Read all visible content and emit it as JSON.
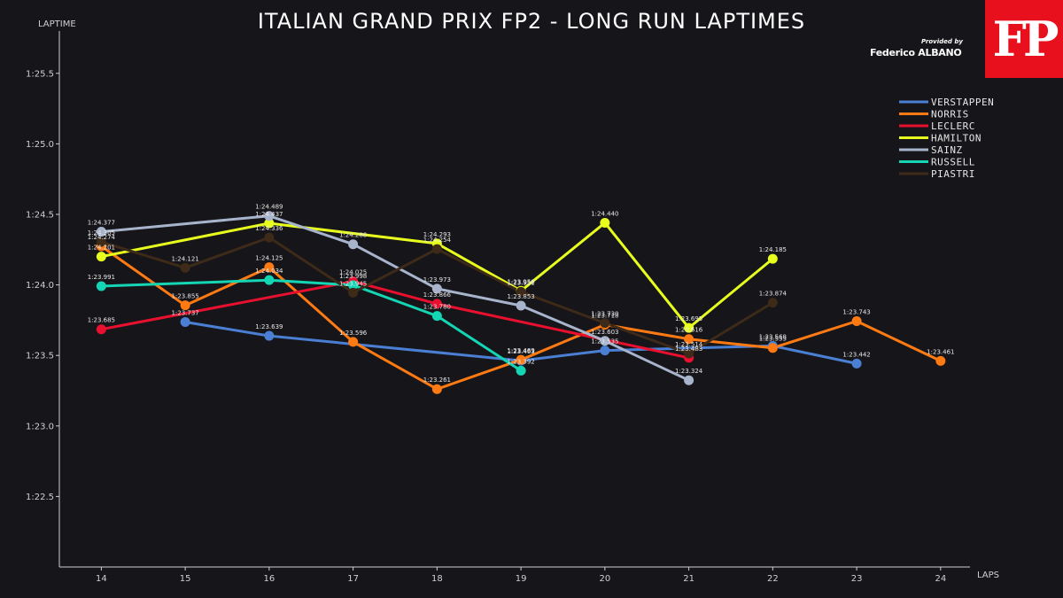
{
  "title": "ITALIAN GRAND PRIX FP2 - LONG RUN LAPTIMES",
  "branding": {
    "logo_text": "FP",
    "credit_label": "Provided by",
    "credit_name": "Federico ALBANO"
  },
  "chart_data": {
    "type": "line",
    "title": "ITALIAN GRAND PRIX FP2 - LONG RUN LAPTIMES",
    "xlabel": "LAPS",
    "ylabel": "LAPTIME",
    "x_ticks": [
      14,
      15,
      16,
      17,
      18,
      19,
      20,
      21,
      22,
      23,
      24
    ],
    "y_ticks": [
      {
        "value": 82.5,
        "label": "1:22.5"
      },
      {
        "value": 83.0,
        "label": "1:23.0"
      },
      {
        "value": 83.5,
        "label": "1:23.5"
      },
      {
        "value": 84.0,
        "label": "1:24.0"
      },
      {
        "value": 84.5,
        "label": "1:24.5"
      },
      {
        "value": 85.0,
        "label": "1:25.0"
      },
      {
        "value": 85.5,
        "label": "1:25.5"
      }
    ],
    "xlim": [
      13.5,
      24.35
    ],
    "ylim": [
      82.0,
      85.8
    ],
    "grid": false,
    "legend_position": "top-right",
    "series": [
      {
        "name": "VERSTAPPEN",
        "color": "#4a7fd4",
        "points": [
          {
            "x": 15,
            "y": 83.737,
            "label": "1:23.737"
          },
          {
            "x": 16,
            "y": 83.639,
            "label": "1:23.639"
          },
          {
            "x": 19,
            "y": 83.463,
            "label": "1:23.463"
          },
          {
            "x": 20,
            "y": 83.535,
            "label": "1:23.535"
          },
          {
            "x": 22,
            "y": 83.568,
            "label": "1:23.568"
          },
          {
            "x": 23,
            "y": 83.442,
            "label": "1:23.442"
          }
        ]
      },
      {
        "name": "NORRIS",
        "color": "#ff7a12",
        "points": [
          {
            "x": 14,
            "y": 84.274,
            "label": "1:24.274"
          },
          {
            "x": 15,
            "y": 83.855,
            "label": "1:23.855"
          },
          {
            "x": 16,
            "y": 84.125,
            "label": "1:24.125"
          },
          {
            "x": 17,
            "y": 83.596,
            "label": "1:23.596"
          },
          {
            "x": 18,
            "y": 83.261,
            "label": "1:23.261"
          },
          {
            "x": 19,
            "y": 83.469,
            "label": "1:23.469"
          },
          {
            "x": 20,
            "y": 83.718,
            "label": "1:23.718"
          },
          {
            "x": 21,
            "y": 83.616,
            "label": "1:23.616"
          },
          {
            "x": 22,
            "y": 83.553,
            "label": "1:23.553"
          },
          {
            "x": 23,
            "y": 83.743,
            "label": "1:23.743"
          },
          {
            "x": 24,
            "y": 83.461,
            "label": "1:23.461"
          }
        ]
      },
      {
        "name": "LECLERC",
        "color": "#e8102e",
        "points": [
          {
            "x": 14,
            "y": 83.685,
            "label": "1:23.685"
          },
          {
            "x": 17,
            "y": 84.025,
            "label": "1:24.025"
          },
          {
            "x": 18,
            "y": 83.866,
            "label": "1:23.866"
          },
          {
            "x": 21,
            "y": 83.483,
            "label": "1:23.483"
          }
        ]
      },
      {
        "name": "HAMILTON",
        "color": "#e8ff1e",
        "points": [
          {
            "x": 14,
            "y": 84.201,
            "label": "1:24.201"
          },
          {
            "x": 16,
            "y": 84.437,
            "label": "1:24.437"
          },
          {
            "x": 18,
            "y": 84.293,
            "label": "1:24.293"
          },
          {
            "x": 19,
            "y": 83.958,
            "label": "1:23.958"
          },
          {
            "x": 20,
            "y": 84.44,
            "label": "1:24.440"
          },
          {
            "x": 21,
            "y": 83.695,
            "label": "1:23.695"
          },
          {
            "x": 22,
            "y": 84.185,
            "label": "1:24.185"
          }
        ]
      },
      {
        "name": "SAINZ",
        "color": "#a7b4cc",
        "points": [
          {
            "x": 14,
            "y": 84.377,
            "label": "1:24.377"
          },
          {
            "x": 16,
            "y": 84.489,
            "label": "1:24.489"
          },
          {
            "x": 17,
            "y": 84.288,
            "label": "1:24.288"
          },
          {
            "x": 18,
            "y": 83.973,
            "label": "1:23.973"
          },
          {
            "x": 19,
            "y": 83.853,
            "label": "1:23.853"
          },
          {
            "x": 20,
            "y": 83.603,
            "label": "1:23.603"
          },
          {
            "x": 21,
            "y": 83.324,
            "label": "1:23.324"
          }
        ]
      },
      {
        "name": "RUSSELL",
        "color": "#14d6b4",
        "points": [
          {
            "x": 14,
            "y": 83.991,
            "label": "1:23.991"
          },
          {
            "x": 16,
            "y": 84.034,
            "label": "1:24.034"
          },
          {
            "x": 17,
            "y": 83.998,
            "label": "1:23.998"
          },
          {
            "x": 18,
            "y": 83.78,
            "label": "1:23.780"
          },
          {
            "x": 19,
            "y": 83.392,
            "label": "1:23.392"
          }
        ]
      },
      {
        "name": "PIASTRI",
        "color": "#3d2a18",
        "points": [
          {
            "x": 14,
            "y": 84.305,
            "label": "1:24.305"
          },
          {
            "x": 15,
            "y": 84.121,
            "label": "1:24.121"
          },
          {
            "x": 16,
            "y": 84.336,
            "label": "1:24.336"
          },
          {
            "x": 17,
            "y": 83.945,
            "label": "1:23.945"
          },
          {
            "x": 18,
            "y": 84.254,
            "label": "1:24.254"
          },
          {
            "x": 19,
            "y": 83.951,
            "label": "1:23.951"
          },
          {
            "x": 20,
            "y": 83.73,
            "label": "1:23.730"
          },
          {
            "x": 21,
            "y": 83.514,
            "label": "1:23.514"
          },
          {
            "x": 22,
            "y": 83.874,
            "label": "1:23.874"
          }
        ]
      }
    ]
  }
}
